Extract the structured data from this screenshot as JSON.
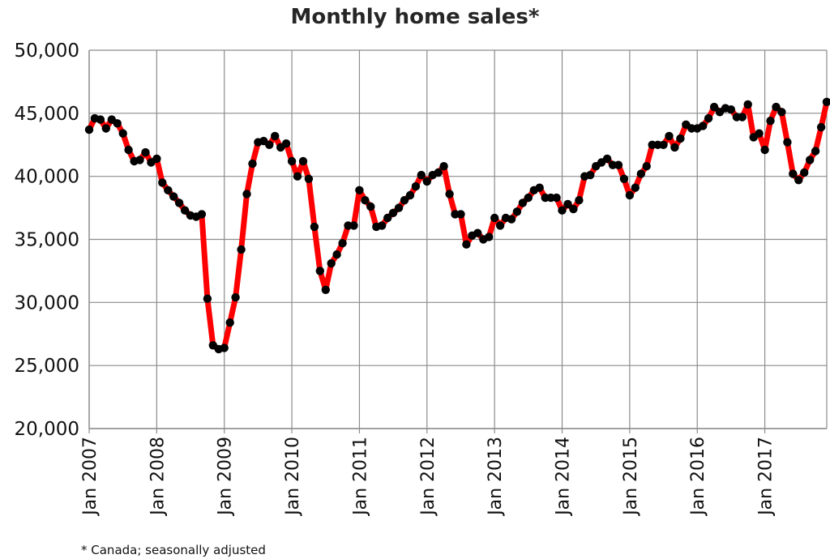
{
  "chart_data": {
    "type": "line",
    "title": "Monthly home sales*",
    "footnote": "* Canada; seasonally adjusted",
    "xlabel": "",
    "ylabel": "",
    "ylim": [
      20000,
      50000
    ],
    "y_ticks": [
      "20,000",
      "25,000",
      "30,000",
      "35,000",
      "40,000",
      "45,000",
      "50,000"
    ],
    "y_tick_values": [
      20000,
      25000,
      30000,
      35000,
      40000,
      45000,
      50000
    ],
    "x_tick_labels": [
      "Jan 2007",
      "Jan 2008",
      "Jan 2009",
      "Jan 2010",
      "Jan 2011",
      "Jan 2012",
      "Jan 2013",
      "Jan 2014",
      "Jan 2015",
      "Jan 2016",
      "Jan 2017"
    ],
    "grid": true,
    "line_color": "#ff0000",
    "marker_color": "#000000",
    "x_start": "Jan 2007",
    "x_end": "Dec 2017",
    "series": [
      {
        "values": [
          43700,
          44600,
          44500,
          43800,
          44500,
          44200,
          43400,
          42100,
          41200,
          41300,
          41900,
          41100,
          41400,
          39500,
          38900,
          38400,
          37900,
          37300,
          36900,
          36800,
          37000,
          30300,
          26600,
          26300,
          26400,
          28400,
          30400,
          34200,
          38600,
          41000,
          42700,
          42800,
          42500,
          43200,
          42300,
          42600,
          41200,
          40000,
          41200,
          39800,
          36000,
          32500,
          31000,
          33100,
          33800,
          34700,
          36100,
          36100,
          38900,
          38100,
          37600,
          36000,
          36100,
          36700,
          37100,
          37500,
          38100,
          38500,
          39200,
          40100,
          39600,
          40100,
          40300,
          40800,
          38600,
          37000,
          37000,
          34600,
          35300,
          35500,
          35000,
          35200,
          36700,
          36100,
          36700,
          36600,
          37200,
          37900,
          38300,
          38900,
          39100,
          38300,
          38300,
          38300,
          37300,
          37800,
          37400,
          38100,
          40000,
          40100,
          40800,
          41100,
          41400,
          40900,
          40900,
          39800,
          38500,
          39100,
          40200,
          40800,
          42500,
          42500,
          42500,
          43200,
          42300,
          43000,
          44100,
          43800,
          43800,
          44000,
          44600,
          45500,
          45100,
          45400,
          45300,
          44700,
          44700,
          45700,
          43100,
          43400,
          42100,
          44400,
          45500,
          45100,
          42700,
          40200,
          39700,
          40300,
          41300,
          42000,
          43900,
          45900
        ]
      }
    ]
  }
}
